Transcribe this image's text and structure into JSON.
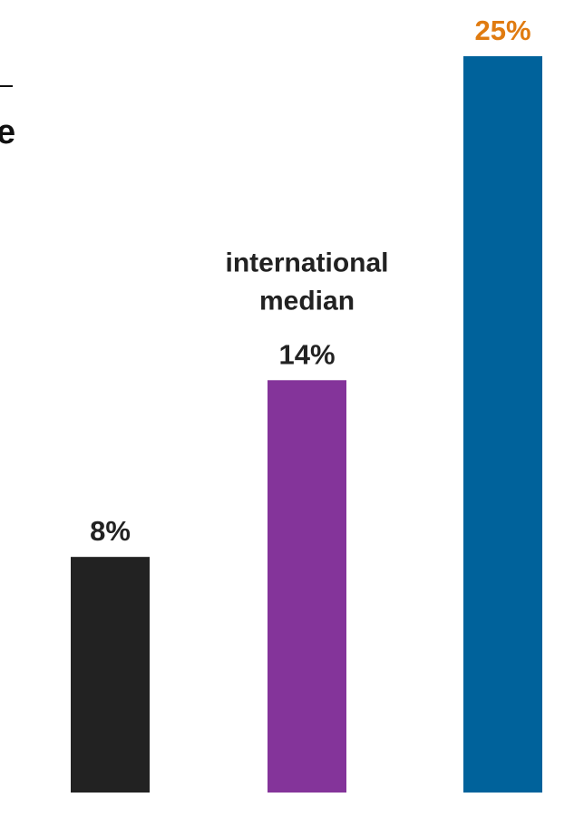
{
  "chart_data": {
    "type": "bar",
    "categories": [
      "",
      "international median",
      ""
    ],
    "category_label_lines": [
      [],
      [
        "international",
        "median"
      ],
      []
    ],
    "values": [
      8,
      14,
      25
    ],
    "value_labels": [
      "8%",
      "14%",
      "25%"
    ],
    "bar_colors": [
      "#222222",
      "#84349A",
      "#00629B"
    ],
    "value_label_colors": [
      "#222222",
      "#222222",
      "#E07B10"
    ],
    "ylim": [
      0,
      25
    ],
    "grid": false,
    "legend": "none"
  },
  "partial_heading": {
    "visible_text": "e"
  }
}
